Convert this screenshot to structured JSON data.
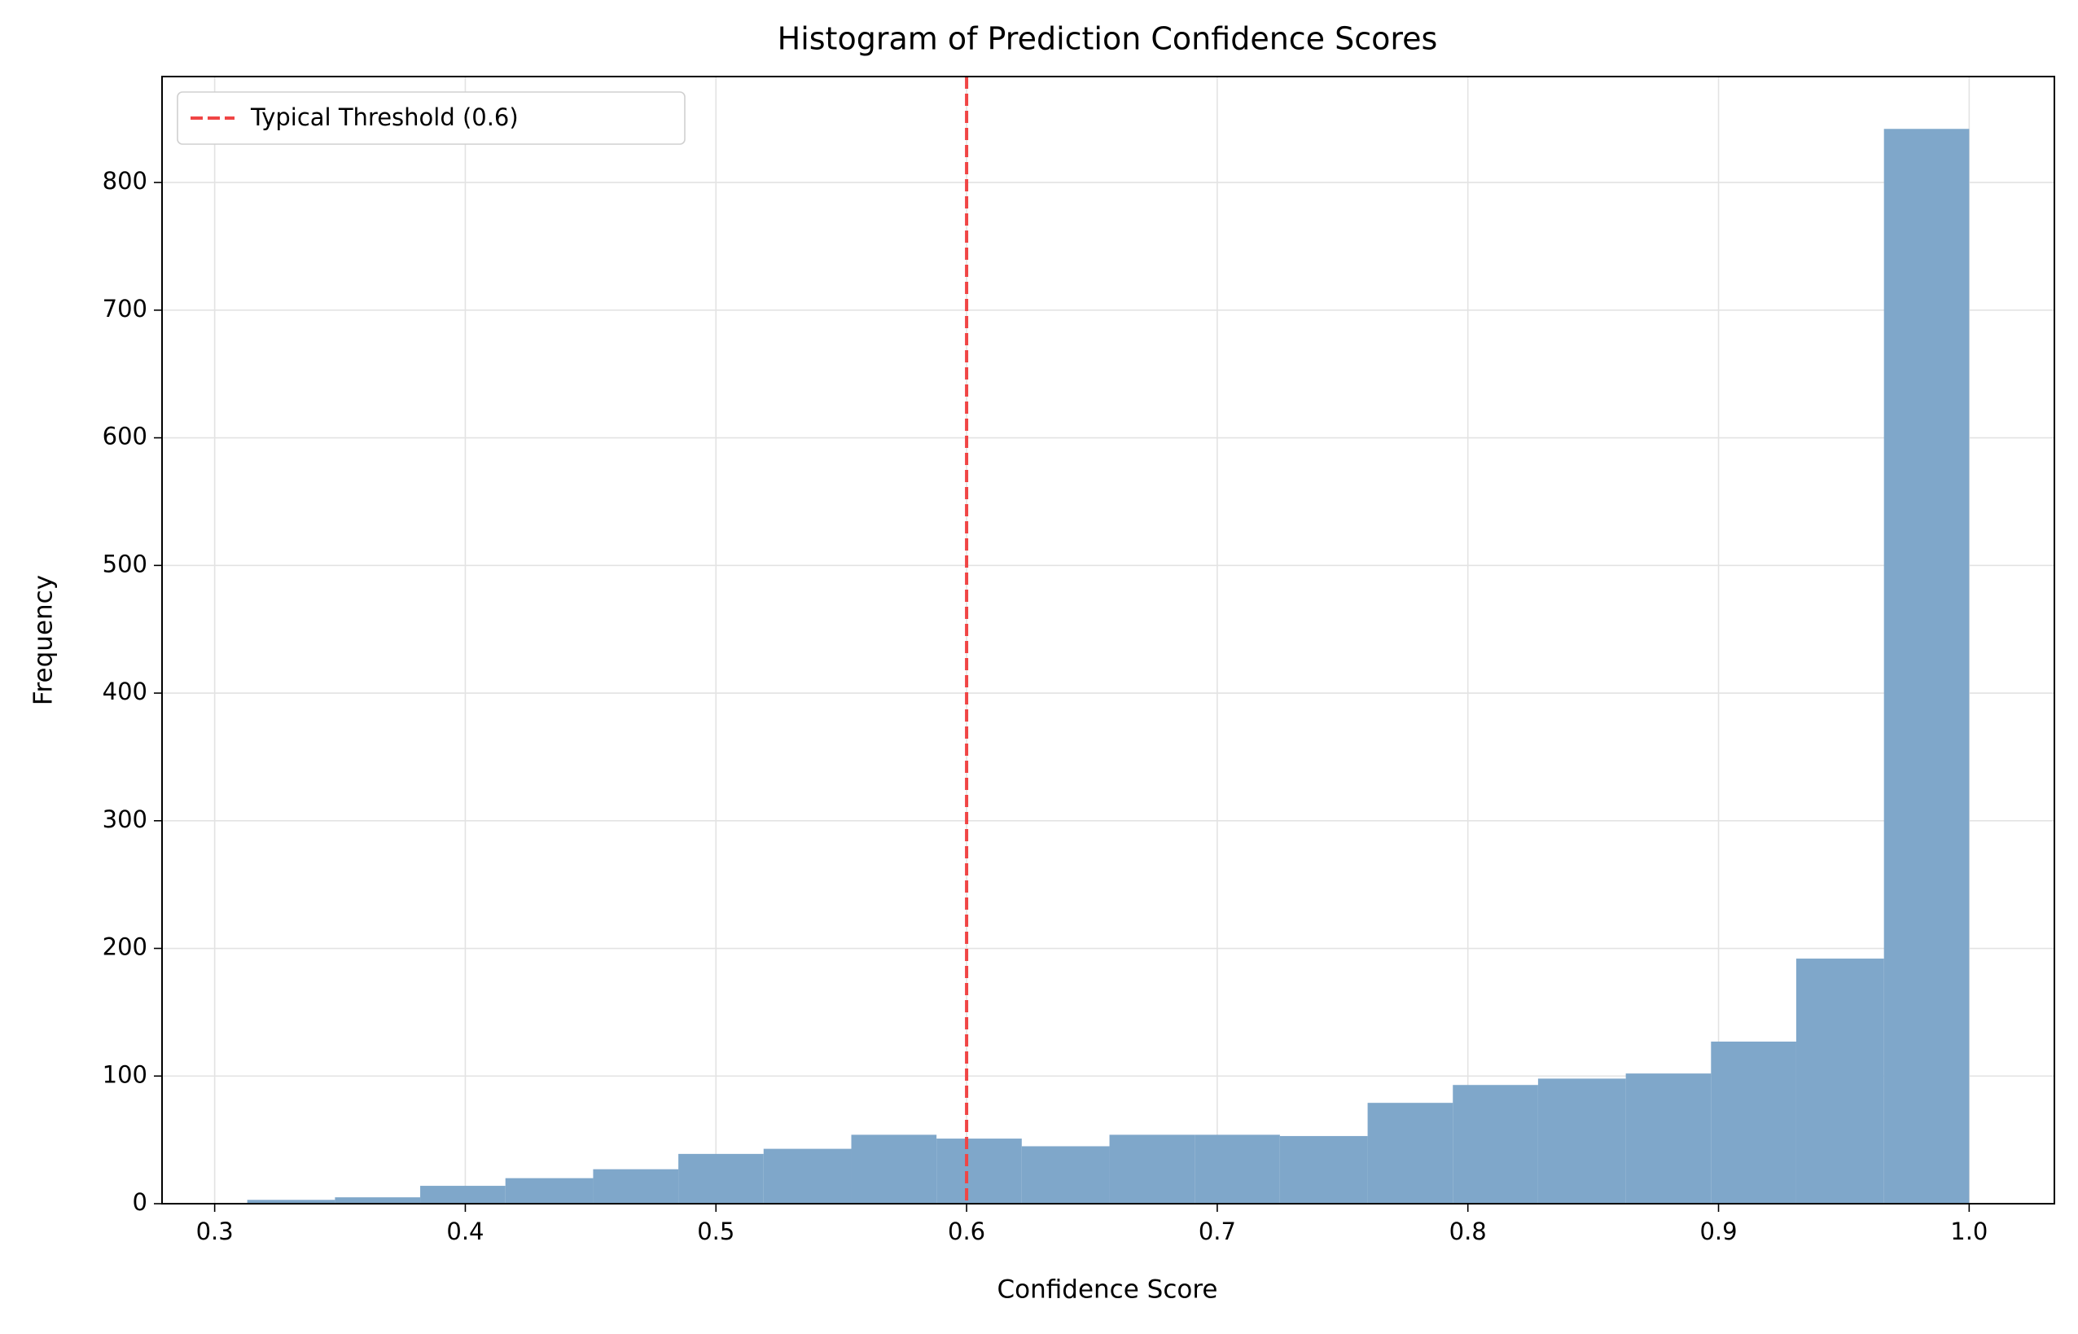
{
  "chart_data": {
    "type": "histogram",
    "title": "Histogram of Prediction Confidence Scores",
    "x_label": "Confidence Score",
    "y_label": "Frequency",
    "bins": [
      0.313,
      0.348,
      0.382,
      0.416,
      0.451,
      0.485,
      0.519,
      0.554,
      0.588,
      0.622,
      0.657,
      0.691,
      0.725,
      0.76,
      0.794,
      0.828,
      0.863,
      0.897,
      0.931,
      0.966,
      1.0
    ],
    "counts": [
      3,
      5,
      14,
      20,
      27,
      39,
      43,
      54,
      51,
      45,
      54,
      54,
      53,
      79,
      93,
      98,
      102,
      127,
      192,
      842
    ],
    "color": "#7fa7ca",
    "threshold": {
      "value": 0.6,
      "label": "Typical Threshold (0.6)",
      "color": "#f04545"
    },
    "xlim": [
      0.279,
      1.034
    ],
    "ylim": [
      0,
      883
    ],
    "xticks": [
      0.3,
      0.4,
      0.5,
      0.6,
      0.7,
      0.8,
      0.9,
      {
        "value": 1.0,
        "label": "1.0"
      }
    ],
    "yticks": [
      0,
      100,
      200,
      300,
      400,
      500,
      600,
      700,
      800
    ],
    "grid": true,
    "legend_position": "upper-left"
  }
}
